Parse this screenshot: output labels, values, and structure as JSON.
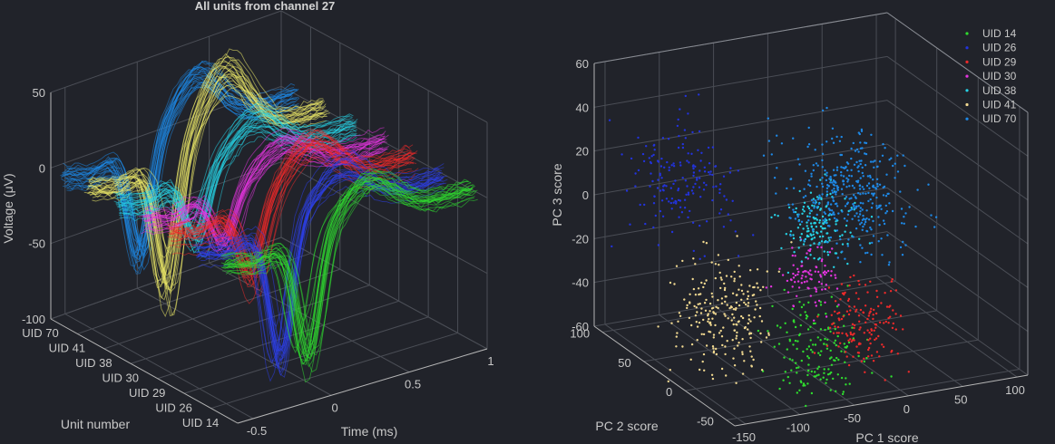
{
  "colors": {
    "background": "#21232a",
    "axis": "#b5b5b5",
    "grid": "#4a4d55",
    "text": "#c8c8c8",
    "title": "#d4d4d4"
  },
  "chart_data": [
    {
      "type": "line",
      "subtype": "3d-waveforms",
      "title": "All units from channel 27",
      "xlabel": "Time (ms)",
      "ylabel": "Unit number",
      "zlabel": "Voltage (μV)",
      "x_ticks": [
        "-0.5",
        "0",
        "0.5",
        "1"
      ],
      "y_ticks": [
        "UID 70",
        "UID 41",
        "UID 38",
        "UID 30",
        "UID 29",
        "UID 26",
        "UID 14"
      ],
      "z_ticks": [
        "50",
        "0",
        "-50",
        "-100"
      ],
      "xlim": [
        -0.6,
        1.0
      ],
      "zlim": [
        -100,
        50
      ],
      "grid": true,
      "series": [
        {
          "unit": "UID 70",
          "color": "#1e88e5",
          "trough": -70,
          "peak": 35
        },
        {
          "unit": "UID 41",
          "color": "#f2ef6a",
          "trough": -80,
          "peak": 45
        },
        {
          "unit": "UID 38",
          "color": "#26d3e6",
          "trough": -40,
          "peak": 25
        },
        {
          "unit": "UID 30",
          "color": "#e535e0",
          "trough": -35,
          "peak": 20
        },
        {
          "unit": "UID 29",
          "color": "#ee2a2a",
          "trough": -45,
          "peak": 30
        },
        {
          "unit": "UID 26",
          "color": "#2e3fe8",
          "trough": -90,
          "peak": 25
        },
        {
          "unit": "UID 14",
          "color": "#2fdc2f",
          "trough": -75,
          "peak": 25
        }
      ]
    },
    {
      "type": "scatter",
      "subtype": "3d",
      "xlabel": "PC 1 score",
      "ylabel": "PC 2 score",
      "zlabel": "PC 3 score",
      "x_ticks": [
        "-150",
        "-100",
        "-50",
        "0",
        "50",
        "100"
      ],
      "y_ticks": [
        "-50",
        "0",
        "50",
        "100"
      ],
      "z_ticks": [
        "60",
        "40",
        "20",
        "0",
        "-20",
        "-40",
        "-60"
      ],
      "xlim": [
        -160,
        110
      ],
      "ylim": [
        -60,
        110
      ],
      "zlim": [
        -60,
        60
      ],
      "grid": true,
      "legend_position": "top-right",
      "series": [
        {
          "name": "UID 14",
          "color": "#2fdc2f",
          "center": [
            -55,
            -20,
            -45
          ],
          "spread": [
            18,
            18,
            12
          ],
          "count": 160
        },
        {
          "name": "UID 26",
          "color": "#2233dd",
          "center": [
            -110,
            70,
            15
          ],
          "spread": [
            20,
            20,
            14
          ],
          "count": 170
        },
        {
          "name": "UID 29",
          "color": "#ee2a2a",
          "center": [
            -5,
            -10,
            -40
          ],
          "spread": [
            14,
            16,
            9
          ],
          "count": 150
        },
        {
          "name": "UID 30",
          "color": "#e535e0",
          "center": [
            -40,
            10,
            -20
          ],
          "spread": [
            12,
            12,
            7
          ],
          "count": 90
        },
        {
          "name": "UID 38",
          "color": "#26d3e6",
          "center": [
            -15,
            30,
            -5
          ],
          "spread": [
            12,
            12,
            8
          ],
          "count": 160
        },
        {
          "name": "UID 41",
          "color": "#f0d890",
          "center": [
            -120,
            5,
            -30
          ],
          "spread": [
            20,
            18,
            12
          ],
          "count": 230
        },
        {
          "name": "UID 70",
          "color": "#1e88e5",
          "center": [
            30,
            50,
            0
          ],
          "spread": [
            22,
            22,
            12
          ],
          "count": 380
        }
      ]
    }
  ]
}
